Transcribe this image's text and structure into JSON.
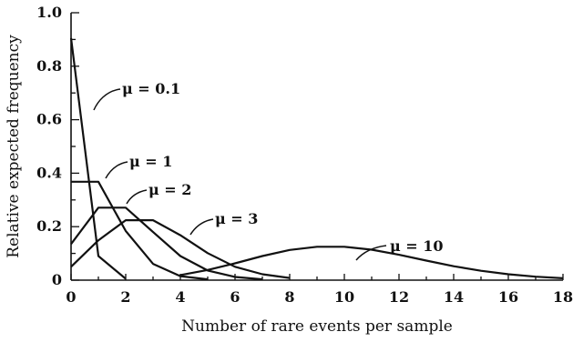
{
  "chart_data": {
    "type": "line",
    "title": "",
    "xlabel": "Number of rare events per sample",
    "ylabel": "Relative expected frequency",
    "xlim": [
      0,
      18
    ],
    "ylim": [
      0,
      1.0
    ],
    "xticks": [
      0,
      2,
      4,
      6,
      8,
      10,
      12,
      14,
      16,
      18
    ],
    "yticks": [
      0,
      0.2,
      0.4,
      0.6,
      0.8,
      1.0
    ],
    "ytick_labels": [
      "0",
      "0.2",
      "0.4",
      "0.6",
      "0.8",
      "1.0"
    ],
    "grid": false,
    "series": [
      {
        "name": "μ = 0.1",
        "x": [
          0,
          1,
          2
        ],
        "y": [
          0.905,
          0.09,
          0.005
        ]
      },
      {
        "name": "μ = 1",
        "x": [
          0,
          1,
          2,
          3,
          4,
          5
        ],
        "y": [
          0.368,
          0.368,
          0.184,
          0.061,
          0.015,
          0.003
        ]
      },
      {
        "name": "μ = 2",
        "x": [
          0,
          1,
          2,
          3,
          4,
          5,
          6,
          7
        ],
        "y": [
          0.135,
          0.271,
          0.271,
          0.18,
          0.09,
          0.036,
          0.012,
          0.003
        ]
      },
      {
        "name": "μ = 3",
        "x": [
          0,
          1,
          2,
          3,
          4,
          5,
          6,
          7,
          8
        ],
        "y": [
          0.05,
          0.149,
          0.224,
          0.224,
          0.168,
          0.101,
          0.05,
          0.022,
          0.008
        ]
      },
      {
        "name": "μ = 10",
        "x": [
          4,
          5,
          6,
          7,
          8,
          9,
          10,
          11,
          12,
          13,
          14,
          15,
          16,
          17,
          18
        ],
        "y": [
          0.019,
          0.038,
          0.063,
          0.09,
          0.113,
          0.125,
          0.125,
          0.114,
          0.095,
          0.073,
          0.052,
          0.035,
          0.022,
          0.013,
          0.007
        ]
      }
    ]
  }
}
